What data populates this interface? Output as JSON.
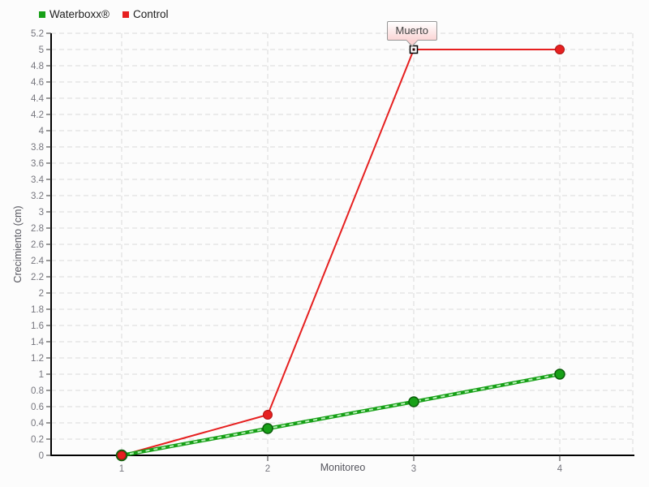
{
  "colors": {
    "background": "#fcfcfc",
    "grid": "#dadada",
    "axis": "#000000",
    "tick_text": "#75757d",
    "axis_label_text": "#55555d",
    "legend_text": "#1e1e1e",
    "waterboxx_green": "#17a017",
    "waterboxx_green_dark": "#0a5c0a",
    "waterboxx_green_dash": "#b9f0b9",
    "control_red": "#e62020",
    "control_red_dark": "#b01212",
    "annotation_border": "#979797",
    "annotation_bg_top": "#ffffff",
    "annotation_bg_bottom": "#fbd6d6",
    "annotation_text": "#3f3f3f"
  },
  "chart_data": {
    "type": "line",
    "title": "",
    "xlabel": "Monitoreo",
    "ylabel": "Crecimiento (cm)",
    "x": [
      1,
      2,
      3,
      4
    ],
    "xtick_labels": [
      "1",
      "2",
      "3",
      "4"
    ],
    "ytick_labels": [
      "0",
      "0.2",
      "0.4",
      "0.6",
      "0.8",
      "1",
      "1.2",
      "1.4",
      "1.6",
      "1.8",
      "2",
      "2.2",
      "2.4",
      "2.6",
      "2.8",
      "3",
      "3.2",
      "3.4",
      "3.6",
      "3.8",
      "4",
      "4.2",
      "4.4",
      "4.6",
      "4.8",
      "5",
      "5.2"
    ],
    "ylim": [
      0,
      5.2
    ],
    "ytick_step": 0.2,
    "grid": true,
    "legend_position": "top-left",
    "series": [
      {
        "name": "Waterboxx®",
        "color": "#17a017",
        "marker": "circle",
        "values": [
          0,
          0.33,
          0.66,
          1
        ]
      },
      {
        "name": "Control",
        "color": "#e62020",
        "marker": "circle",
        "values": [
          0,
          0.5,
          5,
          5
        ]
      }
    ],
    "annotation": {
      "text": "Muerto",
      "series": "Control",
      "x": 3,
      "y": 5,
      "marker": "open-square"
    }
  }
}
